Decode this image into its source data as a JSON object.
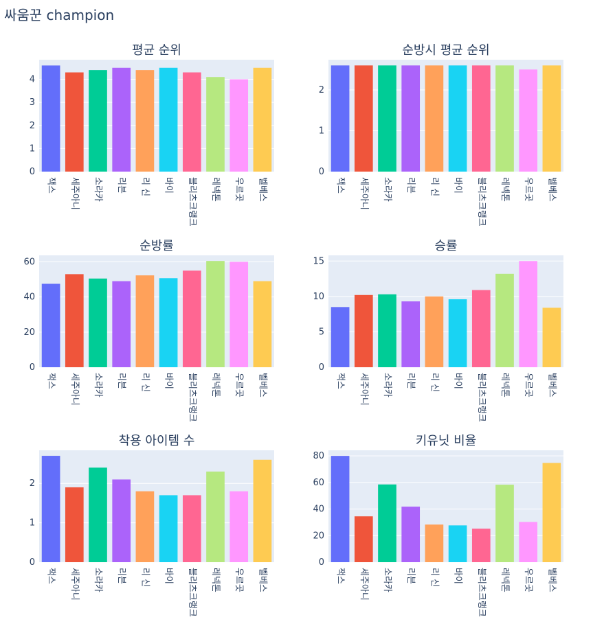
{
  "title": "싸움꾼 champion",
  "categories": [
    "잭스",
    "세주아니",
    "소라카",
    "리븐",
    "리 신",
    "바이",
    "블리츠크랭크",
    "레넥톤",
    "우르곳",
    "벨베스"
  ],
  "colors": [
    "#636efa",
    "#ef553b",
    "#00cc96",
    "#ab63fa",
    "#ffa15a",
    "#19d3f3",
    "#ff6692",
    "#b6e880",
    "#ff97ff",
    "#fecb52"
  ],
  "chart_data": [
    {
      "type": "bar",
      "title": "평균 순위",
      "categories": [
        "잭스",
        "세주아니",
        "소라카",
        "리븐",
        "리 신",
        "바이",
        "블리츠크랭크",
        "레넥톤",
        "우르곳",
        "벨베스"
      ],
      "values": [
        4.6,
        4.3,
        4.4,
        4.5,
        4.4,
        4.5,
        4.3,
        4.1,
        4.0,
        4.5
      ],
      "ylim": [
        0,
        4.85
      ],
      "yticks": [
        0,
        1,
        2,
        3,
        4
      ]
    },
    {
      "type": "bar",
      "title": "순방시 평균 순위",
      "categories": [
        "잭스",
        "세주아니",
        "소라카",
        "리븐",
        "리 신",
        "바이",
        "블리츠크랭크",
        "레넥톤",
        "우르곳",
        "벨베스"
      ],
      "values": [
        2.6,
        2.6,
        2.6,
        2.6,
        2.6,
        2.6,
        2.6,
        2.6,
        2.5,
        2.6
      ],
      "ylim": [
        0,
        2.74
      ],
      "yticks": [
        0,
        1,
        2
      ]
    },
    {
      "type": "bar",
      "title": "순방률",
      "categories": [
        "잭스",
        "세주아니",
        "소라카",
        "리븐",
        "리 신",
        "바이",
        "블리츠크랭크",
        "레넥톤",
        "우르곳",
        "벨베스"
      ],
      "values": [
        47.5,
        53,
        50.5,
        49,
        52.3,
        50.7,
        55,
        60.5,
        60,
        49
      ],
      "ylim": [
        0,
        63.7
      ],
      "yticks": [
        0,
        20,
        40,
        60
      ]
    },
    {
      "type": "bar",
      "title": "승률",
      "categories": [
        "잭스",
        "세주아니",
        "소라카",
        "리븐",
        "리 신",
        "바이",
        "블리츠크랭크",
        "레넥톤",
        "우르곳",
        "벨베스"
      ],
      "values": [
        8.5,
        10.2,
        10.3,
        9.3,
        10.0,
        9.6,
        10.9,
        13.2,
        15.0,
        8.4
      ],
      "ylim": [
        0,
        15.8
      ],
      "yticks": [
        0,
        5,
        10,
        15
      ]
    },
    {
      "type": "bar",
      "title": "착용 아이템 수",
      "categories": [
        "잭스",
        "세주아니",
        "소라카",
        "리븐",
        "리 신",
        "바이",
        "블리츠크랭크",
        "레넥톤",
        "우르곳",
        "벨베스"
      ],
      "values": [
        2.7,
        1.9,
        2.4,
        2.1,
        1.8,
        1.7,
        1.7,
        2.3,
        1.8,
        2.6
      ],
      "ylim": [
        0,
        2.84
      ],
      "yticks": [
        0,
        1,
        2
      ]
    },
    {
      "type": "bar",
      "title": "키유닛 비율",
      "categories": [
        "잭스",
        "세주아니",
        "소라카",
        "리븐",
        "리 신",
        "바이",
        "블리츠크랭크",
        "레넥톤",
        "우르곳",
        "벨베스"
      ],
      "values": [
        80,
        34.5,
        58.5,
        41.8,
        28.3,
        27.7,
        25.2,
        58.3,
        30.3,
        74.7
      ],
      "ylim": [
        0,
        84.2
      ],
      "yticks": [
        0,
        20,
        40,
        60,
        80
      ]
    }
  ]
}
